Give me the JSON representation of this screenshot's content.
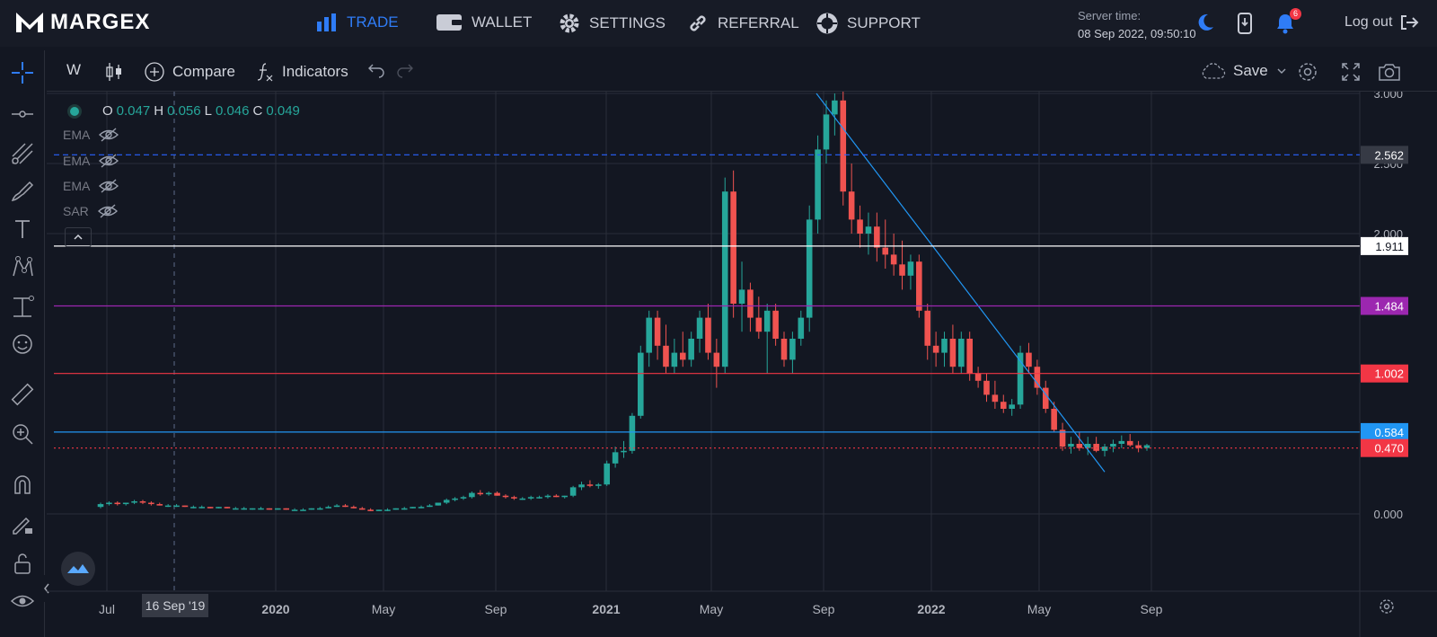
{
  "brand": {
    "name": "MARGEX"
  },
  "nav": [
    {
      "label": "TRADE",
      "icon": "bar-chart-icon",
      "active": true
    },
    {
      "label": "WALLET",
      "icon": "wallet-icon"
    },
    {
      "label": "SETTINGS",
      "icon": "gear-icon"
    },
    {
      "label": "REFERRAL",
      "icon": "link-icon"
    },
    {
      "label": "SUPPORT",
      "icon": "lifebuoy-icon"
    }
  ],
  "server": {
    "label": "Server time:",
    "time": "08 Sep 2022, 09:50:10"
  },
  "notifications": {
    "count": "6"
  },
  "logout": {
    "label": "Log out"
  },
  "toolbar": {
    "interval": "W",
    "compare": "Compare",
    "indicators": "Indicators",
    "save": "Save"
  },
  "legend": {
    "o_key": "O",
    "o": "0.047",
    "h_key": "H",
    "h": "0.056",
    "l_key": "L",
    "l": "0.046",
    "c_key": "C",
    "c": "0.049",
    "indicators": [
      "EMA",
      "EMA",
      "EMA",
      "SAR"
    ]
  },
  "crosshair_date": "16 Sep '19",
  "colors": {
    "up": "#26a69a",
    "down": "#ef5350",
    "accent": "#2f7cf6",
    "purple": "#9c27b0",
    "red": "#f23645",
    "blue": "#2196f3"
  },
  "chart_data": {
    "type": "candlestick",
    "x_ticks": [
      "Jul",
      "2020",
      "May",
      "Sep",
      "2021",
      "May",
      "Sep",
      "2022",
      "May",
      "Sep"
    ],
    "y_ticks": [
      "3.000",
      "2.500",
      "2.000",
      "0.000"
    ],
    "ylim": [
      -0.1,
      3.1
    ],
    "levels": [
      {
        "value": 2.562,
        "label": "2.562",
        "color": "#2962ff",
        "style": "dashed"
      },
      {
        "value": 1.911,
        "label": "1.911",
        "color": "#ffffff",
        "style": "solid"
      },
      {
        "value": 1.484,
        "label": "1.484",
        "color": "#9c27b0",
        "style": "solid"
      },
      {
        "value": 1.002,
        "label": "1.002",
        "color": "#f23645",
        "style": "solid"
      },
      {
        "value": 0.584,
        "label": "0.584",
        "color": "#2196f3",
        "style": "solid"
      },
      {
        "value": 0.47,
        "label": "0.470",
        "color": "#f23645",
        "style": "dotted"
      }
    ],
    "last_price": 0.47,
    "candles": [
      [
        0.05,
        0.08,
        0.04,
        0.07
      ],
      [
        0.07,
        0.09,
        0.06,
        0.08
      ],
      [
        0.08,
        0.09,
        0.06,
        0.07
      ],
      [
        0.07,
        0.08,
        0.06,
        0.08
      ],
      [
        0.08,
        0.1,
        0.07,
        0.09
      ],
      [
        0.09,
        0.1,
        0.07,
        0.08
      ],
      [
        0.08,
        0.09,
        0.06,
        0.07
      ],
      [
        0.07,
        0.08,
        0.06,
        0.06
      ],
      [
        0.06,
        0.07,
        0.05,
        0.06
      ],
      [
        0.06,
        0.07,
        0.05,
        0.06
      ],
      [
        0.06,
        0.06,
        0.05,
        0.05
      ],
      [
        0.05,
        0.06,
        0.04,
        0.05
      ],
      [
        0.05,
        0.06,
        0.04,
        0.05
      ],
      [
        0.05,
        0.05,
        0.04,
        0.04
      ],
      [
        0.04,
        0.05,
        0.04,
        0.05
      ],
      [
        0.05,
        0.05,
        0.04,
        0.04
      ],
      [
        0.04,
        0.05,
        0.04,
        0.04
      ],
      [
        0.04,
        0.05,
        0.03,
        0.04
      ],
      [
        0.04,
        0.04,
        0.03,
        0.04
      ],
      [
        0.04,
        0.05,
        0.03,
        0.04
      ],
      [
        0.04,
        0.04,
        0.03,
        0.03
      ],
      [
        0.03,
        0.04,
        0.03,
        0.04
      ],
      [
        0.04,
        0.04,
        0.03,
        0.03
      ],
      [
        0.03,
        0.04,
        0.03,
        0.03
      ],
      [
        0.03,
        0.04,
        0.03,
        0.03
      ],
      [
        0.03,
        0.04,
        0.03,
        0.04
      ],
      [
        0.04,
        0.05,
        0.03,
        0.04
      ],
      [
        0.04,
        0.06,
        0.04,
        0.05
      ],
      [
        0.05,
        0.07,
        0.05,
        0.06
      ],
      [
        0.06,
        0.07,
        0.05,
        0.05
      ],
      [
        0.05,
        0.06,
        0.04,
        0.04
      ],
      [
        0.04,
        0.05,
        0.03,
        0.03
      ],
      [
        0.03,
        0.04,
        0.02,
        0.02
      ],
      [
        0.02,
        0.03,
        0.02,
        0.03
      ],
      [
        0.03,
        0.04,
        0.02,
        0.03
      ],
      [
        0.03,
        0.04,
        0.03,
        0.04
      ],
      [
        0.04,
        0.05,
        0.03,
        0.04
      ],
      [
        0.04,
        0.05,
        0.04,
        0.05
      ],
      [
        0.05,
        0.06,
        0.04,
        0.05
      ],
      [
        0.05,
        0.07,
        0.05,
        0.06
      ],
      [
        0.06,
        0.08,
        0.06,
        0.08
      ],
      [
        0.08,
        0.11,
        0.07,
        0.1
      ],
      [
        0.1,
        0.12,
        0.09,
        0.11
      ],
      [
        0.11,
        0.13,
        0.1,
        0.12
      ],
      [
        0.12,
        0.16,
        0.11,
        0.15
      ],
      [
        0.15,
        0.17,
        0.13,
        0.14
      ],
      [
        0.14,
        0.16,
        0.13,
        0.15
      ],
      [
        0.15,
        0.16,
        0.13,
        0.13
      ],
      [
        0.13,
        0.14,
        0.11,
        0.12
      ],
      [
        0.12,
        0.13,
        0.1,
        0.11
      ],
      [
        0.11,
        0.12,
        0.1,
        0.11
      ],
      [
        0.11,
        0.13,
        0.1,
        0.12
      ],
      [
        0.12,
        0.13,
        0.11,
        0.12
      ],
      [
        0.12,
        0.14,
        0.11,
        0.13
      ],
      [
        0.13,
        0.14,
        0.12,
        0.12
      ],
      [
        0.12,
        0.13,
        0.11,
        0.13
      ],
      [
        0.13,
        0.2,
        0.12,
        0.19
      ],
      [
        0.19,
        0.23,
        0.17,
        0.21
      ],
      [
        0.21,
        0.24,
        0.19,
        0.2
      ],
      [
        0.2,
        0.22,
        0.18,
        0.21
      ],
      [
        0.21,
        0.38,
        0.2,
        0.36
      ],
      [
        0.36,
        0.48,
        0.33,
        0.44
      ],
      [
        0.44,
        0.52,
        0.4,
        0.45
      ],
      [
        0.45,
        0.72,
        0.43,
        0.7
      ],
      [
        0.7,
        1.2,
        0.68,
        1.15
      ],
      [
        1.15,
        1.45,
        1.05,
        1.4
      ],
      [
        1.4,
        1.45,
        1.1,
        1.2
      ],
      [
        1.2,
        1.35,
        1.0,
        1.05
      ],
      [
        1.05,
        1.25,
        1.0,
        1.15
      ],
      [
        1.15,
        1.3,
        1.05,
        1.1
      ],
      [
        1.1,
        1.3,
        1.05,
        1.25
      ],
      [
        1.25,
        1.45,
        1.15,
        1.4
      ],
      [
        1.4,
        1.5,
        1.1,
        1.15
      ],
      [
        1.15,
        1.25,
        0.9,
        1.05
      ],
      [
        1.05,
        2.4,
        1.0,
        2.3
      ],
      [
        2.3,
        2.45,
        1.4,
        1.5
      ],
      [
        1.5,
        1.8,
        1.3,
        1.6
      ],
      [
        1.6,
        1.65,
        1.3,
        1.4
      ],
      [
        1.4,
        1.55,
        1.25,
        1.3
      ],
      [
        1.3,
        1.5,
        1.0,
        1.45
      ],
      [
        1.45,
        1.5,
        1.2,
        1.25
      ],
      [
        1.25,
        1.3,
        1.05,
        1.1
      ],
      [
        1.1,
        1.3,
        1.0,
        1.25
      ],
      [
        1.25,
        1.45,
        1.2,
        1.4
      ],
      [
        1.4,
        2.2,
        1.3,
        2.1
      ],
      [
        2.1,
        2.7,
        2.0,
        2.6
      ],
      [
        2.6,
        2.95,
        2.5,
        2.85
      ],
      [
        2.85,
        3.0,
        2.7,
        2.95
      ],
      [
        2.95,
        3.05,
        2.2,
        2.3
      ],
      [
        2.3,
        2.5,
        2.0,
        2.1
      ],
      [
        2.1,
        2.2,
        1.9,
        2.0
      ],
      [
        2.0,
        2.15,
        1.85,
        2.05
      ],
      [
        2.05,
        2.15,
        1.8,
        1.9
      ],
      [
        1.9,
        2.1,
        1.75,
        1.85
      ],
      [
        1.85,
        2.0,
        1.7,
        1.78
      ],
      [
        1.78,
        1.95,
        1.6,
        1.7
      ],
      [
        1.7,
        1.85,
        1.6,
        1.8
      ],
      [
        1.8,
        1.85,
        1.4,
        1.45
      ],
      [
        1.45,
        1.5,
        1.1,
        1.2
      ],
      [
        1.2,
        1.3,
        1.05,
        1.15
      ],
      [
        1.15,
        1.3,
        1.05,
        1.25
      ],
      [
        1.25,
        1.35,
        1.0,
        1.05
      ],
      [
        1.05,
        1.3,
        1.0,
        1.25
      ],
      [
        1.25,
        1.3,
        0.95,
        1.0
      ],
      [
        1.0,
        1.05,
        0.9,
        0.95
      ],
      [
        0.95,
        1.0,
        0.8,
        0.85
      ],
      [
        0.85,
        0.95,
        0.75,
        0.8
      ],
      [
        0.8,
        0.85,
        0.72,
        0.75
      ],
      [
        0.75,
        0.82,
        0.7,
        0.78
      ],
      [
        0.78,
        1.2,
        0.75,
        1.15
      ],
      [
        1.15,
        1.22,
        1.0,
        1.05
      ],
      [
        1.05,
        1.1,
        0.85,
        0.9
      ],
      [
        0.9,
        0.95,
        0.72,
        0.75
      ],
      [
        0.75,
        0.8,
        0.58,
        0.6
      ],
      [
        0.6,
        0.65,
        0.45,
        0.48
      ],
      [
        0.48,
        0.55,
        0.43,
        0.5
      ],
      [
        0.5,
        0.58,
        0.45,
        0.47
      ],
      [
        0.47,
        0.55,
        0.42,
        0.5
      ],
      [
        0.5,
        0.55,
        0.44,
        0.45
      ],
      [
        0.45,
        0.5,
        0.41,
        0.48
      ],
      [
        0.48,
        0.53,
        0.44,
        0.5
      ],
      [
        0.5,
        0.56,
        0.47,
        0.52
      ],
      [
        0.52,
        0.57,
        0.48,
        0.49
      ],
      [
        0.49,
        0.52,
        0.44,
        0.47
      ],
      [
        0.47,
        0.5,
        0.45,
        0.49
      ]
    ]
  }
}
